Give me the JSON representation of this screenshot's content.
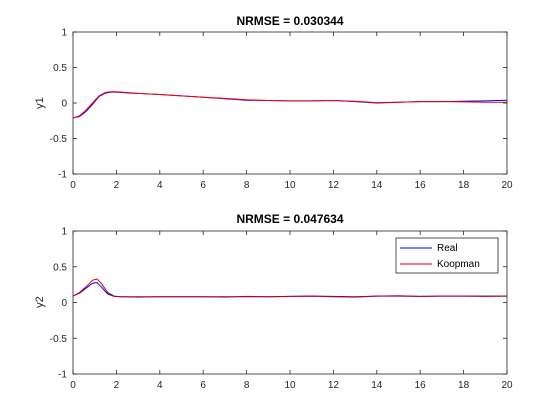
{
  "chart_data": [
    {
      "type": "line",
      "title": "NRMSE = 0.030344",
      "xlabel": "",
      "ylabel": "y1",
      "xlim": [
        0,
        20
      ],
      "ylim": [
        -1,
        1
      ],
      "xticks": [
        "0",
        "2",
        "4",
        "6",
        "8",
        "10",
        "12",
        "14",
        "16",
        "18",
        "20"
      ],
      "yticks": [
        "-1",
        "-0.5",
        "0",
        "0.5",
        "1"
      ],
      "grid": false,
      "series": [
        {
          "color": "#0000ff",
          "x": [
            0,
            0.3,
            0.6,
            0.9,
            1.2,
            1.5,
            1.8,
            2.2,
            2.6,
            3.0,
            4.0,
            5.0,
            6.0,
            7.0,
            8.0,
            9.0,
            10.0,
            11.0,
            12.0,
            13.0,
            14.0,
            15.0,
            16.0,
            17.0,
            18.0,
            19.0,
            20.0
          ],
          "values": [
            -0.21,
            -0.19,
            -0.12,
            -0.02,
            0.09,
            0.14,
            0.155,
            0.15,
            0.14,
            0.135,
            0.12,
            0.1,
            0.08,
            0.06,
            0.04,
            0.035,
            0.03,
            0.03,
            0.035,
            0.02,
            0.0,
            0.01,
            0.02,
            0.02,
            0.025,
            0.03,
            0.04
          ]
        },
        {
          "color": "#ff0000",
          "x": [
            0,
            0.3,
            0.6,
            0.9,
            1.2,
            1.5,
            1.8,
            2.2,
            2.6,
            3.0,
            4.0,
            5.0,
            6.0,
            7.0,
            8.0,
            9.0,
            10.0,
            11.0,
            12.0,
            13.0,
            14.0,
            15.0,
            16.0,
            17.0,
            18.0,
            19.0,
            20.0
          ],
          "values": [
            -0.21,
            -0.18,
            -0.1,
            0.0,
            0.1,
            0.15,
            0.16,
            0.155,
            0.145,
            0.135,
            0.12,
            0.1,
            0.08,
            0.065,
            0.045,
            0.035,
            0.03,
            0.03,
            0.035,
            0.025,
            0.005,
            0.01,
            0.02,
            0.02,
            0.015,
            0.01,
            0.01
          ]
        }
      ]
    },
    {
      "type": "line",
      "title": "NRMSE = 0.047634",
      "xlabel": "",
      "ylabel": "y2",
      "xlim": [
        0,
        20
      ],
      "ylim": [
        -1,
        1
      ],
      "xticks": [
        "0",
        "2",
        "4",
        "6",
        "8",
        "10",
        "12",
        "14",
        "16",
        "18",
        "20"
      ],
      "yticks": [
        "-1",
        "-0.5",
        "0",
        "0.5",
        "1"
      ],
      "grid": false,
      "legend": {
        "position": "top-right"
      },
      "series": [
        {
          "name": "Real",
          "color": "#0000ff",
          "x": [
            0,
            0.3,
            0.6,
            0.9,
            1.1,
            1.3,
            1.6,
            1.9,
            2.2,
            3.0,
            4.0,
            5.0,
            6.0,
            7.0,
            8.0,
            9.0,
            10.0,
            11.0,
            12.0,
            13.0,
            14.0,
            15.0,
            16.0,
            17.0,
            18.0,
            19.0,
            20.0
          ],
          "values": [
            0.09,
            0.13,
            0.2,
            0.27,
            0.28,
            0.22,
            0.12,
            0.085,
            0.08,
            0.08,
            0.08,
            0.08,
            0.08,
            0.08,
            0.08,
            0.08,
            0.085,
            0.09,
            0.085,
            0.08,
            0.09,
            0.09,
            0.085,
            0.09,
            0.09,
            0.09,
            0.09
          ]
        },
        {
          "name": "Koopman",
          "color": "#cc0000",
          "x": [
            0,
            0.3,
            0.6,
            0.9,
            1.1,
            1.3,
            1.6,
            1.9,
            2.2,
            3.0,
            4.0,
            5.0,
            6.0,
            7.0,
            8.0,
            9.0,
            10.0,
            11.0,
            12.0,
            13.0,
            14.0,
            15.0,
            16.0,
            17.0,
            18.0,
            19.0,
            20.0
          ],
          "values": [
            0.09,
            0.14,
            0.22,
            0.31,
            0.33,
            0.27,
            0.14,
            0.09,
            0.08,
            0.075,
            0.08,
            0.08,
            0.08,
            0.075,
            0.085,
            0.08,
            0.085,
            0.09,
            0.08,
            0.075,
            0.09,
            0.095,
            0.085,
            0.09,
            0.09,
            0.085,
            0.09
          ]
        }
      ]
    }
  ]
}
